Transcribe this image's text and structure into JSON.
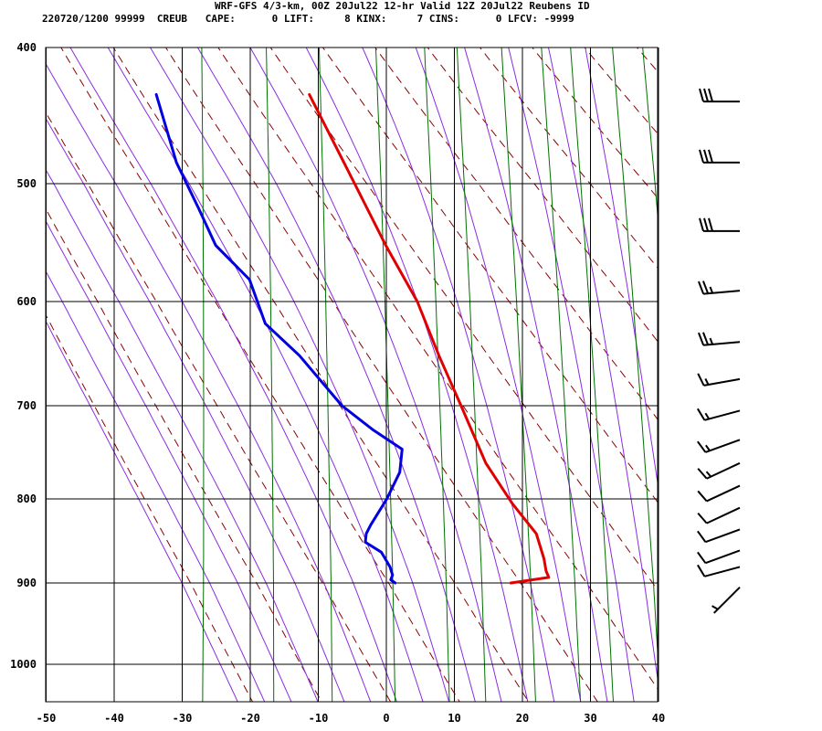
{
  "header": {
    "line1": "WRF-GFS 4/3-km, 00Z 20Jul22 12-hr Valid 12Z 20Jul22 Reubens ID",
    "line2": "220720/1200 99999  CREUB   CAPE:      0 LIFT:     8 KINX:     7 CINS:      0 LFCV: -9999"
  },
  "chart_data": {
    "type": "line",
    "subtype": "skew-t log-p sounding",
    "x_ticks": [
      -50,
      -40,
      -30,
      -20,
      -10,
      0,
      10,
      20,
      30,
      40
    ],
    "y_ticks": [
      400,
      500,
      600,
      700,
      800,
      900,
      1000
    ],
    "ylim": [
      400,
      1045
    ],
    "y_scale": "log (pressure, hPa, inverted)",
    "grid": true,
    "series": [
      {
        "color": "#e00000",
        "points": [
          [
            900,
            16.5
          ],
          [
            893,
            22
          ],
          [
            885,
            21.5
          ],
          [
            870,
            21
          ],
          [
            840,
            19.5
          ],
          [
            805,
            15.5
          ],
          [
            760,
            11
          ],
          [
            700,
            6.5
          ],
          [
            650,
            2.5
          ],
          [
            600,
            -1.5
          ],
          [
            550,
            -7
          ],
          [
            500,
            -12.5
          ],
          [
            432,
            -20.5
          ]
        ]
      },
      {
        "color": "#0000e0",
        "points": [
          [
            900,
            -0.5
          ],
          [
            896,
            -1.2
          ],
          [
            890,
            -1
          ],
          [
            880,
            -1.5
          ],
          [
            862,
            -3
          ],
          [
            850,
            -5.5
          ],
          [
            840,
            -5.5
          ],
          [
            830,
            -5
          ],
          [
            800,
            -3
          ],
          [
            770,
            -1.5
          ],
          [
            745,
            -1.5
          ],
          [
            725,
            -6
          ],
          [
            700,
            -11
          ],
          [
            650,
            -18
          ],
          [
            620,
            -23.5
          ],
          [
            580,
            -26.5
          ],
          [
            550,
            -32
          ],
          [
            520,
            -35
          ],
          [
            483,
            -39
          ],
          [
            432,
            -43
          ]
        ]
      }
    ],
    "background_lines": {
      "isotherm_color": "#000000",
      "dry_adiabat_color": "#8b0000",
      "moist_adiabat_color": "#8a2be2",
      "mixing_ratio_color": "#007000"
    },
    "wind_barbs": [
      {
        "pressure": 437,
        "speed_kt": 30,
        "direction_deg": 270
      },
      {
        "pressure": 483,
        "speed_kt": 30,
        "direction_deg": 270
      },
      {
        "pressure": 538,
        "speed_kt": 30,
        "direction_deg": 270
      },
      {
        "pressure": 590,
        "speed_kt": 25,
        "direction_deg": 265
      },
      {
        "pressure": 637,
        "speed_kt": 25,
        "direction_deg": 265
      },
      {
        "pressure": 673,
        "speed_kt": 15,
        "direction_deg": 260
      },
      {
        "pressure": 705,
        "speed_kt": 15,
        "direction_deg": 255
      },
      {
        "pressure": 735,
        "speed_kt": 15,
        "direction_deg": 250
      },
      {
        "pressure": 760,
        "speed_kt": 15,
        "direction_deg": 245
      },
      {
        "pressure": 785,
        "speed_kt": 10,
        "direction_deg": 245
      },
      {
        "pressure": 810,
        "speed_kt": 10,
        "direction_deg": 245
      },
      {
        "pressure": 835,
        "speed_kt": 10,
        "direction_deg": 250
      },
      {
        "pressure": 860,
        "speed_kt": 10,
        "direction_deg": 250
      },
      {
        "pressure": 880,
        "speed_kt": 10,
        "direction_deg": 255
      },
      {
        "pressure": 905,
        "speed_kt": 5,
        "direction_deg": 225
      }
    ]
  }
}
